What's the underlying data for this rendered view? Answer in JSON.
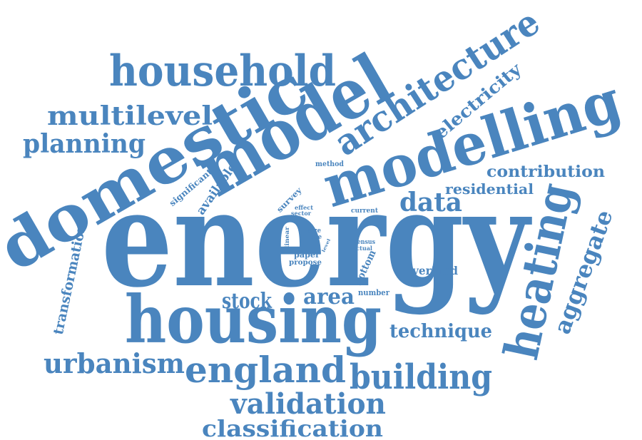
{
  "cloud": {
    "color": "#4a85be",
    "words": {
      "energy": "energy",
      "housing": "housing",
      "domestic": "domestic",
      "model": "model",
      "modelling": "modelling",
      "household": "household",
      "architecture": "architecture",
      "electricity": "electricity",
      "multilevel": "multilevel",
      "planning": "planning",
      "heating": "heating",
      "aggregate": "aggregate",
      "contribution": "contribution",
      "residential": "residential",
      "data": "data",
      "transformation": "transformation",
      "stock": "stock",
      "area": "area",
      "verified": "verified",
      "technique": "technique",
      "urbanism": "urbanism",
      "england": "england",
      "building": "building",
      "validation": "validation",
      "classification": "classification",
      "significant": "significant",
      "available": "available",
      "method": "method",
      "survey": "survey",
      "effect": "effect",
      "sector": "sector",
      "current": "current",
      "linear": "linear",
      "size": "size",
      "use": "use",
      "level": "level",
      "census": "census",
      "actual": "actual",
      "paper": "paper",
      "propose": "propose",
      "bottom": "bottom",
      "number": "number"
    }
  }
}
